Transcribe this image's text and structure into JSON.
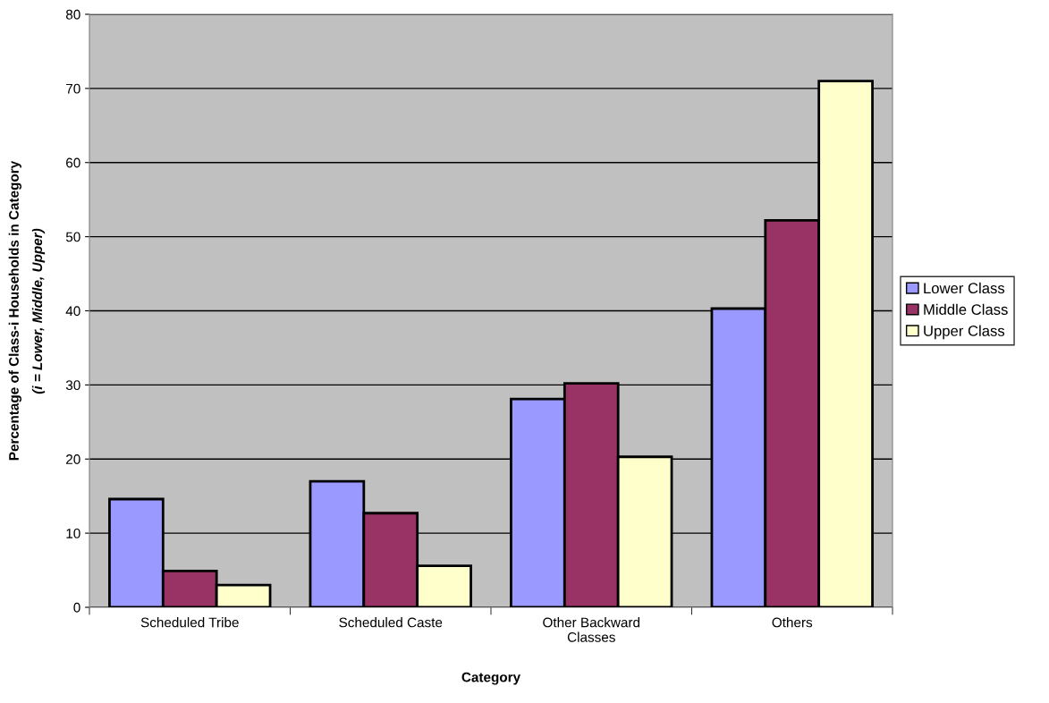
{
  "chart_data": {
    "type": "bar",
    "xlabel": "Category",
    "ylabel": "Percentage of Class-i Households in Category",
    "annotations": [
      "(i = Lower, Middle, Upper)"
    ],
    "categories": [
      "Scheduled Tribe",
      "Scheduled Caste",
      "Other Backward\nClasses",
      "Others"
    ],
    "series": [
      {
        "name": "Lower Class",
        "color": "#9999ff",
        "values": [
          14.6,
          17.0,
          28.1,
          40.3
        ]
      },
      {
        "name": "Middle Class",
        "color": "#993366",
        "values": [
          4.9,
          12.7,
          30.2,
          52.2
        ]
      },
      {
        "name": "Upper Class",
        "color": "#ffffcc",
        "values": [
          3.0,
          5.6,
          20.3,
          71.0
        ]
      }
    ],
    "ylim": [
      0,
      80
    ],
    "yticks": [
      0,
      10,
      20,
      30,
      40,
      50,
      60,
      70,
      80
    ],
    "grid": "y",
    "legend": "right"
  }
}
